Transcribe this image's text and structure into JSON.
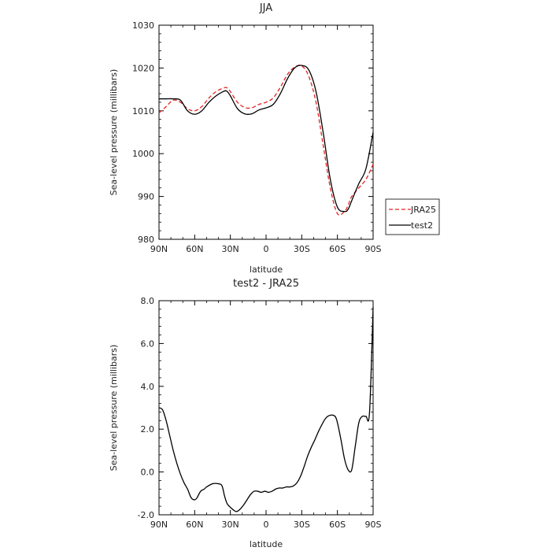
{
  "chart_data": [
    {
      "type": "line",
      "title": "JJA",
      "xlabel": "latitude",
      "ylabel": "Sea-level pressure (millibars)",
      "x_ticks": [
        "90N",
        "60N",
        "30N",
        "0",
        "30S",
        "60S",
        "90S"
      ],
      "x_tick_values": [
        -90,
        -60,
        -30,
        0,
        30,
        60,
        90
      ],
      "ylim": [
        980,
        1030
      ],
      "y_ticks": [
        "980",
        "990",
        "1000",
        "1010",
        "1020",
        "1030"
      ],
      "legend_position": "right",
      "series": [
        {
          "name": "JRA25",
          "style": "dashed",
          "color": "#e32222",
          "x": [
            -90,
            -84,
            -78,
            -72,
            -66,
            -60,
            -54,
            -48,
            -42,
            -36,
            -33,
            -30,
            -24,
            -18,
            -12,
            -6,
            0,
            6,
            12,
            18,
            24,
            30,
            36,
            42,
            48,
            54,
            60,
            66,
            69,
            72,
            78,
            84,
            90
          ],
          "y": [
            1009.5,
            1011,
            1012.5,
            1012,
            1010.5,
            1010,
            1011,
            1013,
            1014.5,
            1015.3,
            1015.4,
            1014.5,
            1012,
            1010.8,
            1010.7,
            1011.5,
            1012,
            1013,
            1015.5,
            1018.5,
            1020.2,
            1020.5,
            1018,
            1012,
            1002,
            992,
            986,
            986.5,
            988,
            990,
            992,
            994,
            997.5
          ]
        },
        {
          "name": "test2",
          "style": "solid",
          "color": "#000000",
          "x": [
            -90,
            -84,
            -78,
            -72,
            -66,
            -60,
            -54,
            -48,
            -42,
            -36,
            -33,
            -30,
            -24,
            -18,
            -12,
            -6,
            0,
            6,
            12,
            18,
            24,
            30,
            36,
            42,
            48,
            54,
            60,
            66,
            69,
            72,
            78,
            84,
            90
          ],
          "y": [
            1012.8,
            1012.8,
            1012.8,
            1012.5,
            1010,
            1009.2,
            1010,
            1012,
            1013.5,
            1014.5,
            1014.6,
            1013.5,
            1010.5,
            1009.3,
            1009.3,
            1010.2,
            1010.7,
            1011.5,
            1014,
            1017.5,
            1020,
            1020.6,
            1019.5,
            1014.5,
            1005,
            994,
            987.5,
            986.5,
            987,
            989,
            993,
            996.5,
            1005
          ]
        }
      ]
    },
    {
      "type": "line",
      "title": "test2 - JRA25",
      "xlabel": "latitude",
      "ylabel": "Sea-level pressure (millibars)",
      "x_ticks": [
        "90N",
        "60N",
        "30N",
        "0",
        "30S",
        "60S",
        "90S"
      ],
      "x_tick_values": [
        -90,
        -60,
        -30,
        0,
        30,
        60,
        90
      ],
      "ylim": [
        -2.0,
        8.0
      ],
      "y_ticks": [
        "-2.0",
        "0.0",
        "2.0",
        "4.0",
        "6.0",
        "8.0"
      ],
      "series": [
        {
          "name": "test2 - JRA25",
          "style": "solid",
          "color": "#000000",
          "x": [
            -90,
            -87,
            -84,
            -81,
            -78,
            -75,
            -72,
            -69,
            -66,
            -63,
            -60,
            -58,
            -55,
            -52,
            -50,
            -45,
            -40,
            -37,
            -35,
            -33,
            -31,
            -28,
            -25,
            -22,
            -19,
            -16,
            -13,
            -10,
            -7,
            -4,
            -1,
            2,
            5,
            8,
            11,
            14,
            17,
            20,
            23,
            26,
            29,
            32,
            35,
            38,
            41,
            45,
            50,
            54,
            58,
            60,
            63,
            66,
            69,
            72,
            75,
            78,
            81,
            84,
            87,
            90
          ],
          "y": [
            3.0,
            2.9,
            2.4,
            1.7,
            1.0,
            0.4,
            -0.1,
            -0.5,
            -0.8,
            -1.2,
            -1.3,
            -1.2,
            -0.9,
            -0.8,
            -0.7,
            -0.55,
            -0.55,
            -0.65,
            -1.1,
            -1.45,
            -1.6,
            -1.75,
            -1.85,
            -1.75,
            -1.55,
            -1.3,
            -1.05,
            -0.9,
            -0.9,
            -0.95,
            -0.9,
            -0.95,
            -0.9,
            -0.8,
            -0.75,
            -0.75,
            -0.7,
            -0.7,
            -0.65,
            -0.5,
            -0.2,
            0.25,
            0.75,
            1.15,
            1.5,
            2.0,
            2.5,
            2.65,
            2.6,
            2.3,
            1.5,
            0.6,
            0.1,
            0.1,
            1.2,
            2.3,
            2.6,
            2.6,
            2.8,
            7.7
          ]
        }
      ]
    }
  ]
}
